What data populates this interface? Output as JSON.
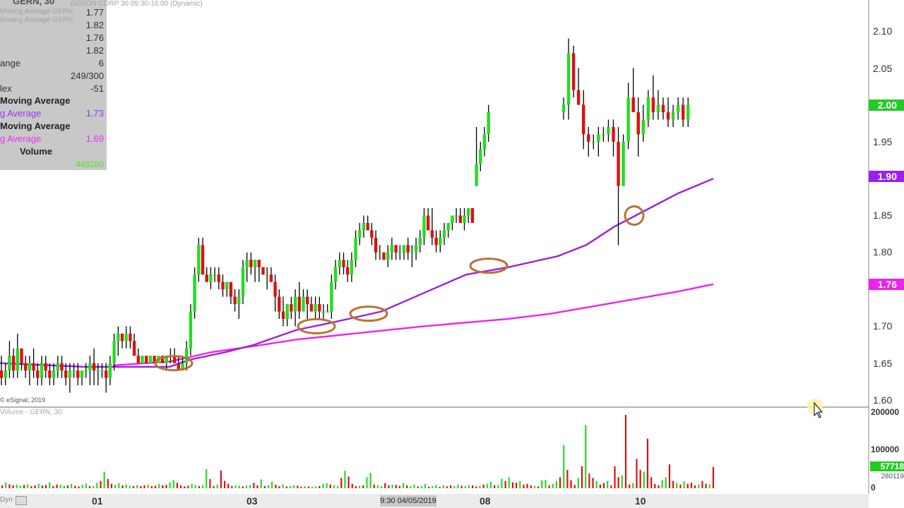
{
  "symbol_header": "GERN, 30",
  "symbol_subtitle": "GERON CORP  30  09:30-16:00 (Dynamic)",
  "info_panel": {
    "ghost_line_1": "Moving Average  GERN",
    "ghost_line_2": "Moving Average  GERN",
    "rows": [
      {
        "label": "",
        "value": "1.77"
      },
      {
        "label": "",
        "value": "1.82"
      },
      {
        "label": "",
        "value": "1.76"
      },
      {
        "label": "",
        "value": "1.82"
      },
      {
        "label": "ange",
        "value": "6"
      },
      {
        "label": "",
        "value": "249/300"
      },
      {
        "label": "lex",
        "value": "-51"
      }
    ],
    "ma1_header": "Moving Average",
    "ma1_label": "g Average",
    "ma1_value": "1.73",
    "ma2_header": "Moving Average",
    "ma2_label": "g Average",
    "ma2_value": "1.69",
    "volume_header": "Volume",
    "volume_value": "448280"
  },
  "copyright": "© eSignal, 2019",
  "volume_pane_title": "Volume - GERN, 30",
  "dyn_label": "Dyn",
  "cursor_time": "9:30 04/05/2019",
  "colors": {
    "up": "#22dd22",
    "down": "#dd1111",
    "ma_fast": "#9922dd",
    "ma_slow": "#ee22ee",
    "circle": "#b87333",
    "price_tag": "#22cc22",
    "ma_fast_tag": "#9922ee",
    "ma_slow_tag": "#ee22ee"
  },
  "chart_data": [
    {
      "type": "candlestick",
      "title": "GERN, 30",
      "y_ticks": [
        "2.10",
        "2.05",
        "2.00",
        "1.95",
        "1.90",
        "1.85",
        "1.80",
        "1.75",
        "1.70",
        "1.65",
        "1.60"
      ],
      "ylim": [
        1.595,
        2.13
      ],
      "x_tick_labels": [
        "01",
        "03",
        "08",
        "10"
      ],
      "tags": {
        "last_price": "2.00",
        "ma_fast": "1.90",
        "ma_slow": "1.76"
      },
      "series_ohlc": [
        [
          1.64,
          1.66,
          1.62,
          1.63
        ],
        [
          1.63,
          1.65,
          1.62,
          1.64
        ],
        [
          1.64,
          1.68,
          1.63,
          1.66
        ],
        [
          1.66,
          1.67,
          1.63,
          1.64
        ],
        [
          1.64,
          1.69,
          1.63,
          1.67
        ],
        [
          1.67,
          1.67,
          1.64,
          1.65
        ],
        [
          1.65,
          1.66,
          1.63,
          1.64
        ],
        [
          1.64,
          1.66,
          1.62,
          1.65
        ],
        [
          1.65,
          1.67,
          1.63,
          1.64
        ],
        [
          1.64,
          1.65,
          1.62,
          1.63
        ],
        [
          1.63,
          1.66,
          1.62,
          1.65
        ],
        [
          1.65,
          1.66,
          1.63,
          1.64
        ],
        [
          1.64,
          1.65,
          1.62,
          1.63
        ],
        [
          1.63,
          1.65,
          1.62,
          1.64
        ],
        [
          1.64,
          1.66,
          1.63,
          1.65
        ],
        [
          1.65,
          1.66,
          1.63,
          1.64
        ],
        [
          1.64,
          1.65,
          1.62,
          1.63
        ],
        [
          1.63,
          1.65,
          1.61,
          1.64
        ],
        [
          1.64,
          1.65,
          1.63,
          1.64
        ],
        [
          1.64,
          1.65,
          1.62,
          1.63
        ],
        [
          1.63,
          1.64,
          1.62,
          1.64
        ],
        [
          1.64,
          1.65,
          1.63,
          1.64
        ],
        [
          1.64,
          1.66,
          1.62,
          1.65
        ],
        [
          1.65,
          1.67,
          1.62,
          1.64
        ],
        [
          1.64,
          1.65,
          1.62,
          1.64
        ],
        [
          1.64,
          1.65,
          1.63,
          1.64
        ],
        [
          1.64,
          1.65,
          1.61,
          1.63
        ],
        [
          1.63,
          1.66,
          1.62,
          1.65
        ],
        [
          1.65,
          1.69,
          1.64,
          1.68
        ],
        [
          1.68,
          1.7,
          1.66,
          1.69
        ],
        [
          1.69,
          1.69,
          1.67,
          1.68
        ],
        [
          1.68,
          1.7,
          1.67,
          1.69
        ],
        [
          1.69,
          1.7,
          1.67,
          1.68
        ],
        [
          1.68,
          1.69,
          1.66,
          1.66
        ],
        [
          1.66,
          1.67,
          1.65,
          1.65
        ],
        [
          1.65,
          1.66,
          1.65,
          1.66
        ],
        [
          1.66,
          1.66,
          1.65,
          1.65
        ],
        [
          1.65,
          1.66,
          1.65,
          1.66
        ],
        [
          1.66,
          1.66,
          1.65,
          1.65
        ],
        [
          1.65,
          1.66,
          1.65,
          1.66
        ],
        [
          1.66,
          1.66,
          1.65,
          1.65
        ],
        [
          1.65,
          1.66,
          1.64,
          1.66
        ],
        [
          1.66,
          1.67,
          1.65,
          1.66
        ],
        [
          1.66,
          1.67,
          1.65,
          1.65
        ],
        [
          1.65,
          1.66,
          1.64,
          1.64
        ],
        [
          1.64,
          1.66,
          1.64,
          1.65
        ],
        [
          1.65,
          1.68,
          1.64,
          1.67
        ],
        [
          1.67,
          1.73,
          1.66,
          1.72
        ],
        [
          1.72,
          1.78,
          1.71,
          1.77
        ],
        [
          1.77,
          1.82,
          1.76,
          1.81
        ],
        [
          1.81,
          1.82,
          1.77,
          1.77
        ],
        [
          1.77,
          1.78,
          1.76,
          1.76
        ],
        [
          1.76,
          1.78,
          1.75,
          1.77
        ],
        [
          1.77,
          1.78,
          1.76,
          1.77
        ],
        [
          1.77,
          1.78,
          1.75,
          1.76
        ],
        [
          1.76,
          1.77,
          1.74,
          1.75
        ],
        [
          1.75,
          1.76,
          1.74,
          1.76
        ],
        [
          1.76,
          1.76,
          1.73,
          1.74
        ],
        [
          1.74,
          1.75,
          1.72,
          1.73
        ],
        [
          1.73,
          1.75,
          1.71,
          1.74
        ],
        [
          1.74,
          1.79,
          1.73,
          1.78
        ],
        [
          1.78,
          1.8,
          1.76,
          1.79
        ],
        [
          1.79,
          1.8,
          1.77,
          1.78
        ],
        [
          1.78,
          1.79,
          1.76,
          1.79
        ],
        [
          1.79,
          1.79,
          1.76,
          1.78
        ],
        [
          1.78,
          1.78,
          1.77,
          1.77
        ],
        [
          1.77,
          1.78,
          1.75,
          1.77
        ],
        [
          1.77,
          1.78,
          1.76,
          1.76
        ],
        [
          1.76,
          1.77,
          1.72,
          1.74
        ],
        [
          1.74,
          1.75,
          1.71,
          1.72
        ],
        [
          1.72,
          1.74,
          1.7,
          1.71
        ],
        [
          1.71,
          1.73,
          1.7,
          1.73
        ],
        [
          1.73,
          1.74,
          1.71,
          1.72
        ],
        [
          1.72,
          1.75,
          1.7,
          1.74
        ],
        [
          1.74,
          1.76,
          1.71,
          1.72
        ],
        [
          1.72,
          1.75,
          1.72,
          1.74
        ],
        [
          1.74,
          1.75,
          1.71,
          1.73
        ],
        [
          1.73,
          1.74,
          1.72,
          1.72
        ],
        [
          1.72,
          1.74,
          1.71,
          1.73
        ],
        [
          1.73,
          1.74,
          1.71,
          1.72
        ],
        [
          1.72,
          1.73,
          1.71,
          1.72
        ],
        [
          1.72,
          1.73,
          1.72,
          1.72
        ],
        [
          1.72,
          1.77,
          1.71,
          1.76
        ],
        [
          1.76,
          1.79,
          1.75,
          1.78
        ],
        [
          1.78,
          1.8,
          1.77,
          1.79
        ],
        [
          1.79,
          1.8,
          1.77,
          1.78
        ],
        [
          1.78,
          1.79,
          1.76,
          1.77
        ],
        [
          1.77,
          1.8,
          1.76,
          1.79
        ],
        [
          1.79,
          1.83,
          1.78,
          1.82
        ],
        [
          1.82,
          1.84,
          1.81,
          1.83
        ],
        [
          1.83,
          1.85,
          1.82,
          1.84
        ],
        [
          1.84,
          1.85,
          1.83,
          1.83
        ],
        [
          1.83,
          1.84,
          1.81,
          1.82
        ],
        [
          1.82,
          1.83,
          1.79,
          1.8
        ],
        [
          1.8,
          1.81,
          1.79,
          1.8
        ],
        [
          1.8,
          1.8,
          1.79,
          1.79
        ],
        [
          1.79,
          1.81,
          1.78,
          1.8
        ],
        [
          1.8,
          1.82,
          1.79,
          1.81
        ],
        [
          1.81,
          1.81,
          1.79,
          1.8
        ],
        [
          1.8,
          1.81,
          1.79,
          1.8
        ],
        [
          1.8,
          1.81,
          1.79,
          1.81
        ],
        [
          1.81,
          1.82,
          1.79,
          1.8
        ],
        [
          1.8,
          1.81,
          1.78,
          1.8
        ],
        [
          1.8,
          1.82,
          1.79,
          1.81
        ],
        [
          1.81,
          1.83,
          1.8,
          1.82
        ],
        [
          1.82,
          1.86,
          1.81,
          1.85
        ],
        [
          1.85,
          1.86,
          1.83,
          1.83
        ],
        [
          1.83,
          1.86,
          1.81,
          1.82
        ],
        [
          1.82,
          1.83,
          1.8,
          1.81
        ],
        [
          1.81,
          1.83,
          1.8,
          1.82
        ],
        [
          1.82,
          1.84,
          1.81,
          1.83
        ],
        [
          1.83,
          1.84,
          1.82,
          1.84
        ],
        [
          1.84,
          1.85,
          1.83,
          1.85
        ],
        [
          1.85,
          1.86,
          1.84,
          1.85
        ],
        [
          1.85,
          1.86,
          1.84,
          1.84
        ],
        [
          1.84,
          1.86,
          1.83,
          1.85
        ],
        [
          1.85,
          1.86,
          1.84,
          1.86
        ],
        [
          1.86,
          1.86,
          1.84,
          1.84
        ],
        [
          1.89,
          1.97,
          1.89,
          1.92
        ],
        [
          1.92,
          1.95,
          1.91,
          1.94
        ],
        [
          1.94,
          1.97,
          1.93,
          1.96
        ],
        [
          1.96,
          2.0,
          1.95,
          1.99
        ],
        [
          1.99,
          2.01,
          1.98,
          2.0
        ],
        [
          2.0,
          2.09,
          1.98,
          2.07
        ],
        [
          2.07,
          2.08,
          2.01,
          2.02
        ],
        [
          2.02,
          2.05,
          2.0,
          2.0
        ],
        [
          2.0,
          2.02,
          1.94,
          1.96
        ],
        [
          1.96,
          1.97,
          1.93,
          1.95
        ],
        [
          1.95,
          1.96,
          1.94,
          1.95
        ],
        [
          1.95,
          1.97,
          1.93,
          1.96
        ],
        [
          1.96,
          1.97,
          1.95,
          1.96
        ],
        [
          1.96,
          1.98,
          1.95,
          1.97
        ],
        [
          1.97,
          1.98,
          1.93,
          1.95
        ],
        [
          1.95,
          1.97,
          1.81,
          1.89
        ],
        [
          1.89,
          1.96,
          1.89,
          1.95
        ],
        [
          1.95,
          2.03,
          1.94,
          2.01
        ],
        [
          2.01,
          2.05,
          1.99,
          1.99
        ],
        [
          1.99,
          2.01,
          1.93,
          1.96
        ],
        [
          1.96,
          2.0,
          1.95,
          1.98
        ],
        [
          1.98,
          2.02,
          1.97,
          2.01
        ],
        [
          2.01,
          2.04,
          1.98,
          1.99
        ],
        [
          1.99,
          2.02,
          1.98,
          2.0
        ],
        [
          2.0,
          2.01,
          1.98,
          1.99
        ],
        [
          1.99,
          2.01,
          1.97,
          1.98
        ],
        [
          1.98,
          2.0,
          1.97,
          1.99
        ],
        [
          1.99,
          2.01,
          1.98,
          2.0
        ],
        [
          2.0,
          2.01,
          1.97,
          1.98
        ],
        [
          1.98,
          2.01,
          1.97,
          2.0
        ]
      ],
      "series_ma_fast": [
        [
          0,
          1.65
        ],
        [
          120,
          1.645
        ],
        [
          240,
          1.645
        ],
        [
          270,
          1.655
        ],
        [
          320,
          1.665
        ],
        [
          360,
          1.675
        ],
        [
          420,
          1.695
        ],
        [
          470,
          1.705
        ],
        [
          540,
          1.72
        ],
        [
          600,
          1.745
        ],
        [
          660,
          1.77
        ],
        [
          720,
          1.78
        ],
        [
          790,
          1.795
        ],
        [
          830,
          1.81
        ],
        [
          870,
          1.835
        ],
        [
          920,
          1.86
        ],
        [
          960,
          1.88
        ],
        [
          1010,
          1.9
        ]
      ],
      "series_ma_slow": [
        [
          160,
          1.647
        ],
        [
          240,
          1.652
        ],
        [
          300,
          1.665
        ],
        [
          360,
          1.673
        ],
        [
          420,
          1.682
        ],
        [
          480,
          1.688
        ],
        [
          540,
          1.694
        ],
        [
          600,
          1.7
        ],
        [
          660,
          1.705
        ],
        [
          720,
          1.71
        ],
        [
          780,
          1.717
        ],
        [
          840,
          1.727
        ],
        [
          900,
          1.737
        ],
        [
          960,
          1.747
        ],
        [
          1010,
          1.757
        ]
      ],
      "annotations": [
        {
          "bar": 46,
          "price": 1.65
        },
        {
          "bar": 83,
          "price": 1.7
        },
        {
          "bar": 97,
          "price": 1.717
        },
        {
          "bar": 129,
          "price": 1.782
        },
        {
          "bar": 167,
          "price": 1.85
        }
      ]
    },
    {
      "type": "bar",
      "title": "Volume - GERN, 30",
      "y_ticks": [
        "200000",
        "100000",
        "0"
      ],
      "tags": {
        "volume": "57718",
        "reference": "280119"
      },
      "ylim": [
        0,
        200000
      ],
      "values": [
        8000,
        16000,
        11000,
        8000,
        10000,
        7000,
        9000,
        11000,
        6000,
        8000,
        12000,
        7000,
        9000,
        16000,
        6000,
        10000,
        9000,
        7000,
        8000,
        12000,
        7000,
        5000,
        9000,
        13000,
        6000,
        6000,
        15000,
        20000,
        45000,
        25000,
        12000,
        9000,
        14000,
        8000,
        10000,
        7000,
        6000,
        9000,
        6000,
        8000,
        10000,
        6000,
        7000,
        12000,
        8000,
        9000,
        16000,
        22000,
        15000,
        8000,
        5000,
        7000,
        12000,
        9000,
        6000,
        8000,
        52000,
        25000,
        6000,
        10000,
        48000,
        20000,
        12000,
        6000,
        8000,
        7000,
        5000,
        7000,
        9000,
        15000,
        8000,
        24000,
        6000,
        8000,
        18000,
        10000,
        6000,
        10000,
        5000,
        6000,
        8000,
        7000,
        4000,
        6000,
        5000,
        4000,
        5000,
        6000,
        12000,
        14000,
        10000,
        8000,
        6000,
        28000,
        48000,
        32000,
        12000,
        6000,
        7000,
        8000,
        30000,
        42000,
        10000,
        8000,
        6000,
        14000,
        8000,
        10000,
        9000,
        6000,
        14000,
        8000,
        6000,
        10000,
        5000,
        6000,
        12000,
        4000,
        6000,
        9000,
        4000,
        8000,
        5000,
        8000,
        6000,
        10000,
        7000,
        6000,
        9000,
        8000,
        5000,
        7000,
        10000,
        12000,
        18000,
        8000,
        9000,
        26000,
        20000,
        30000,
        16000,
        15000,
        20000,
        10000,
        12000,
        8000,
        6000,
        5000,
        22000,
        23000,
        8000,
        12000,
        20000,
        30000,
        118000,
        50000,
        22000,
        9000,
        28000,
        60000,
        172000,
        40000,
        28000,
        20000,
        10000,
        14000,
        20000,
        8000,
        60000,
        30000,
        35000,
        200000,
        10000,
        14000,
        80000,
        50000,
        45000,
        135000,
        30000,
        12000,
        8000,
        22000,
        30000,
        65000,
        20000,
        15000,
        10000,
        18000,
        12000,
        15000,
        8000,
        10000,
        20000,
        12000,
        10000,
        58000
      ]
    }
  ]
}
